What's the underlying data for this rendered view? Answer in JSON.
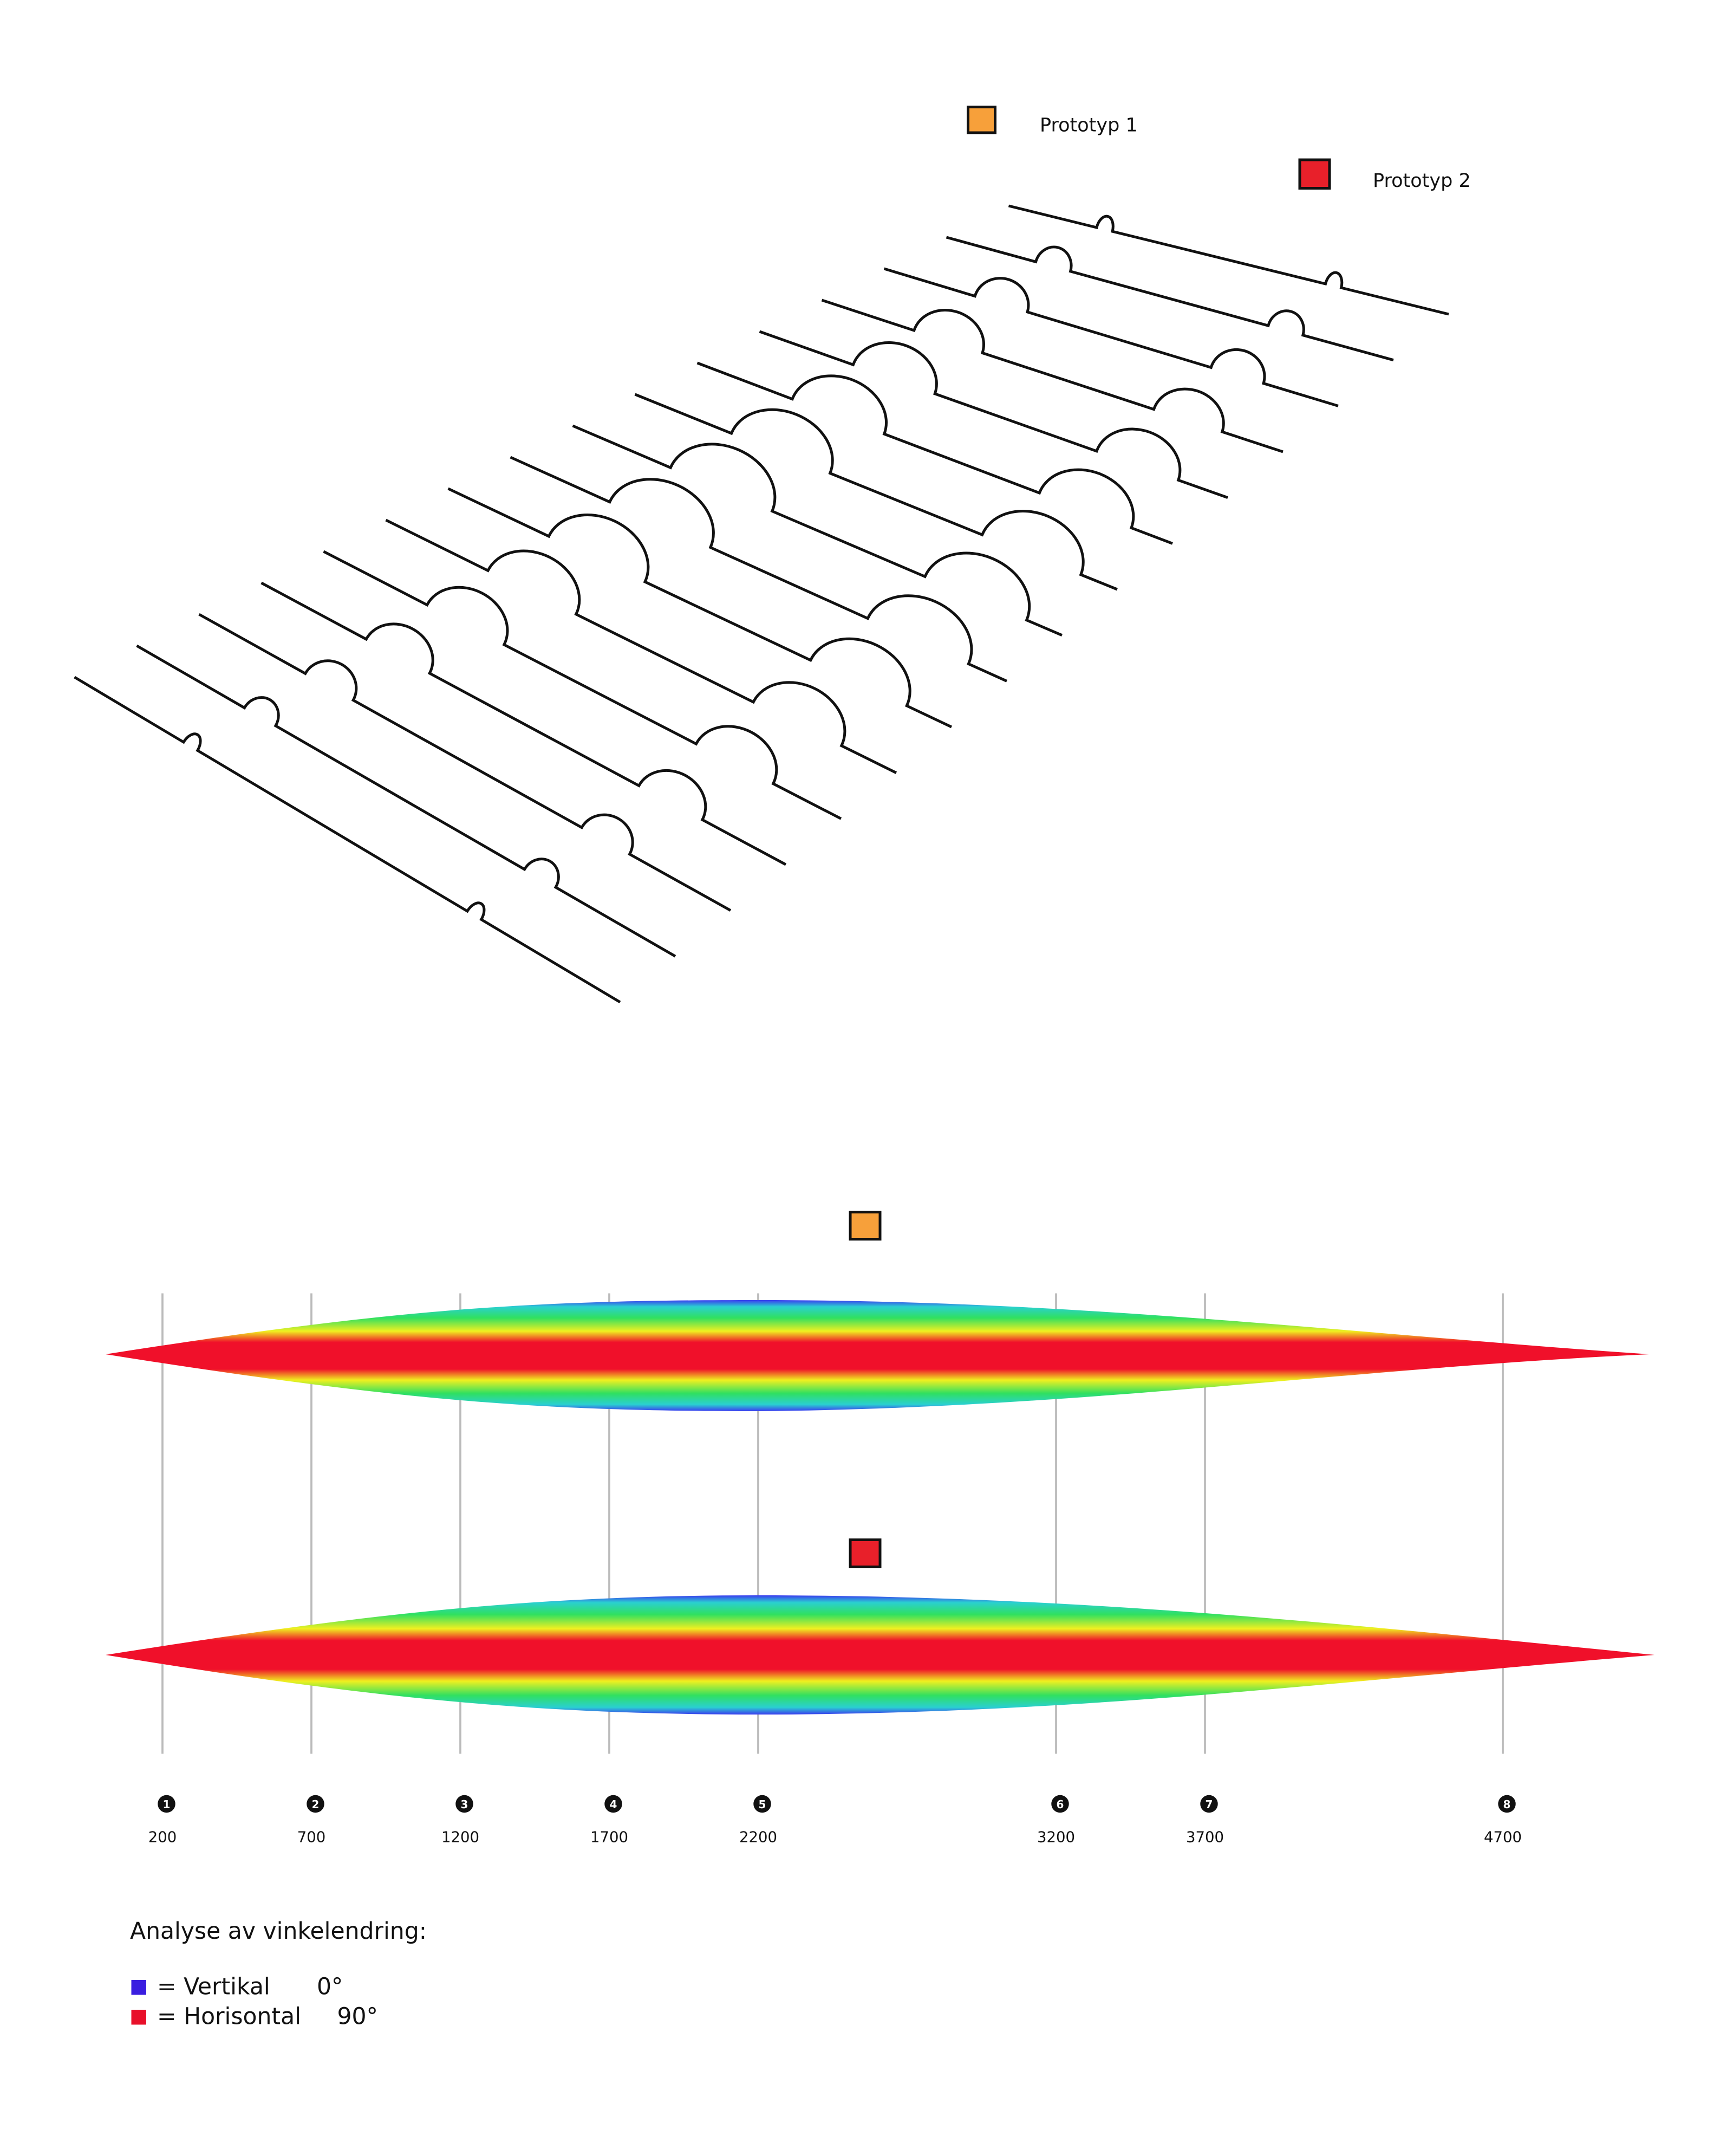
{
  "legend": [
    {
      "label": "Prototyp 1",
      "color": "#f7a03a"
    },
    {
      "label": "Prototyp 2",
      "color": "#e8202a"
    }
  ],
  "stations": [
    {
      "number": 1,
      "position": 200
    },
    {
      "number": 2,
      "position": 700
    },
    {
      "number": 3,
      "position": 1200
    },
    {
      "number": 4,
      "position": 1700
    },
    {
      "number": 5,
      "position": 2200
    },
    {
      "number": 6,
      "position": 3200
    },
    {
      "number": 7,
      "position": 3700
    },
    {
      "number": 8,
      "position": 4700
    }
  ],
  "analysis": {
    "title": "Analyse av vinkelendring:",
    "items": [
      {
        "label": "= Vertikal",
        "angle": "0°",
        "color": "#3a1ee0"
      },
      {
        "label": "= Horisontal",
        "angle": "90°",
        "color": "#e8102a"
      }
    ]
  }
}
